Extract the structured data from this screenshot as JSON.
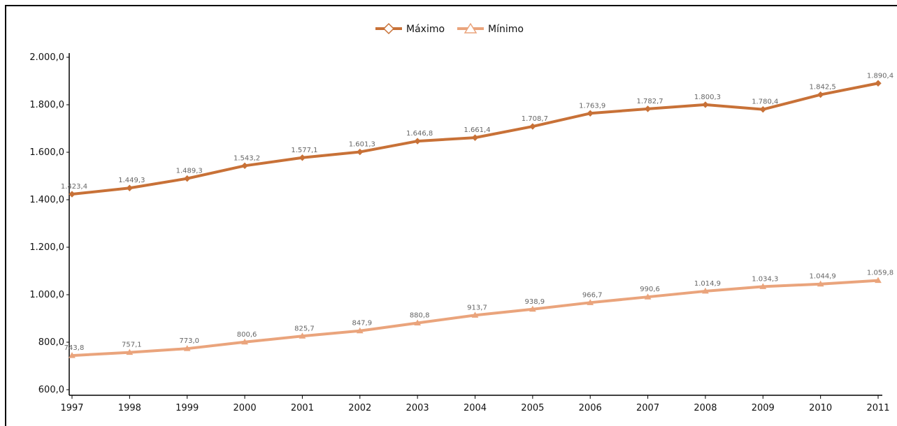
{
  "chart_data": {
    "type": "line",
    "title": "",
    "xlabel": "",
    "ylabel": "",
    "categories": [
      "1997",
      "1998",
      "1999",
      "2000",
      "2001",
      "2002",
      "2003",
      "2004",
      "2005",
      "2006",
      "2007",
      "2008",
      "2009",
      "2010",
      "2011"
    ],
    "series": [
      {
        "name": "Máximo",
        "color": "#c87137",
        "marker": "diamond",
        "values": [
          1423.4,
          1449.3,
          1489.3,
          1543.2,
          1577.1,
          1601.3,
          1646.8,
          1661.4,
          1708.7,
          1763.9,
          1782.7,
          1800.3,
          1780.4,
          1842.5,
          1890.4
        ],
        "labels": [
          "1.423,4",
          "1.449,3",
          "1.489,3",
          "1.543,2",
          "1.577,1",
          "1.601,3",
          "1.646,8",
          "1.661,4",
          "1.708,7",
          "1.763,9",
          "1.782,7",
          "1.800,3",
          "1.780,4",
          "1.842,5",
          "1.890,4"
        ]
      },
      {
        "name": "Mínimo",
        "color": "#eaa47c",
        "marker": "triangle",
        "values": [
          743.8,
          757.1,
          773.0,
          800.6,
          825.7,
          847.9,
          880.8,
          913.7,
          938.9,
          966.7,
          990.6,
          1014.9,
          1034.3,
          1044.9,
          1059.8
        ],
        "labels": [
          "743,8",
          "757,1",
          "773,0",
          "800,6",
          "825,7",
          "847,9",
          "880,8",
          "913,7",
          "938,9",
          "966,7",
          "990,6",
          "1.014,9",
          "1.034,3",
          "1.044,9",
          "1.059,8"
        ]
      }
    ],
    "ylim": [
      600,
      2000
    ],
    "yticks": [
      600,
      800,
      1000,
      1200,
      1400,
      1600,
      1800,
      2000
    ],
    "ytick_labels": [
      "600,0",
      "800,0",
      "1.000,0",
      "1.200,0",
      "1.400,0",
      "1.600,0",
      "1.800,0",
      "2.000,0"
    ],
    "grid": false,
    "legend_position": "top-center"
  }
}
